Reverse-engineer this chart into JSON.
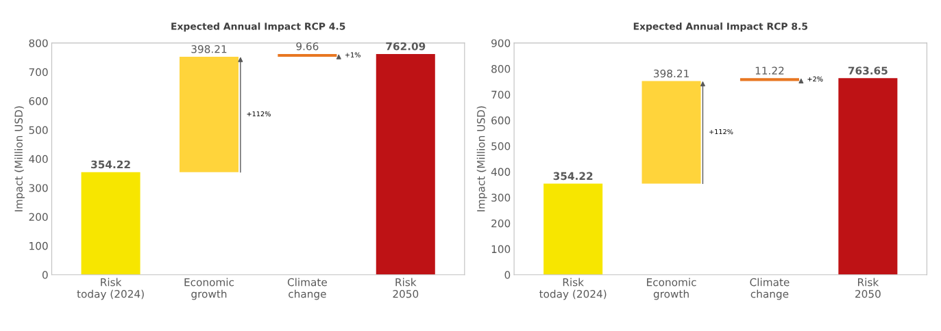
{
  "chart_data": [
    {
      "type": "bar",
      "title": "Expected Annual Impact RCP 4.5",
      "ylabel": "Impact (Million USD)",
      "categories": [
        "Risk today (2024)",
        "Economic growth",
        "Climate change",
        "Risk 2050"
      ],
      "values": [
        354.22,
        398.21,
        9.66,
        762.09
      ],
      "base": [
        0,
        354.22,
        752.43,
        0
      ],
      "colors": [
        "#f7e600",
        "#ffd43b",
        "#e87722",
        "#be1215"
      ],
      "data_labels": true,
      "ylim": [
        0,
        800
      ],
      "yticks": [
        0,
        100,
        200,
        300,
        400,
        500,
        600,
        700,
        800
      ],
      "grid": false,
      "legend": false,
      "annotations": [
        "+112%",
        "+1%"
      ]
    },
    {
      "type": "bar",
      "title": "Expected Annual Impact RCP 8.5",
      "ylabel": "Impact (Million USD)",
      "categories": [
        "Risk today (2024)",
        "Economic growth",
        "Climate change",
        "Risk 2050"
      ],
      "values": [
        354.22,
        398.21,
        11.22,
        763.65
      ],
      "base": [
        0,
        354.22,
        752.43,
        0
      ],
      "colors": [
        "#f7e600",
        "#ffd43b",
        "#e87722",
        "#be1215"
      ],
      "data_labels": true,
      "ylim": [
        0,
        900
      ],
      "yticks": [
        0,
        100,
        200,
        300,
        400,
        500,
        600,
        700,
        800,
        900
      ],
      "grid": false,
      "legend": false,
      "annotations": [
        "+112%",
        "+2%"
      ]
    }
  ]
}
